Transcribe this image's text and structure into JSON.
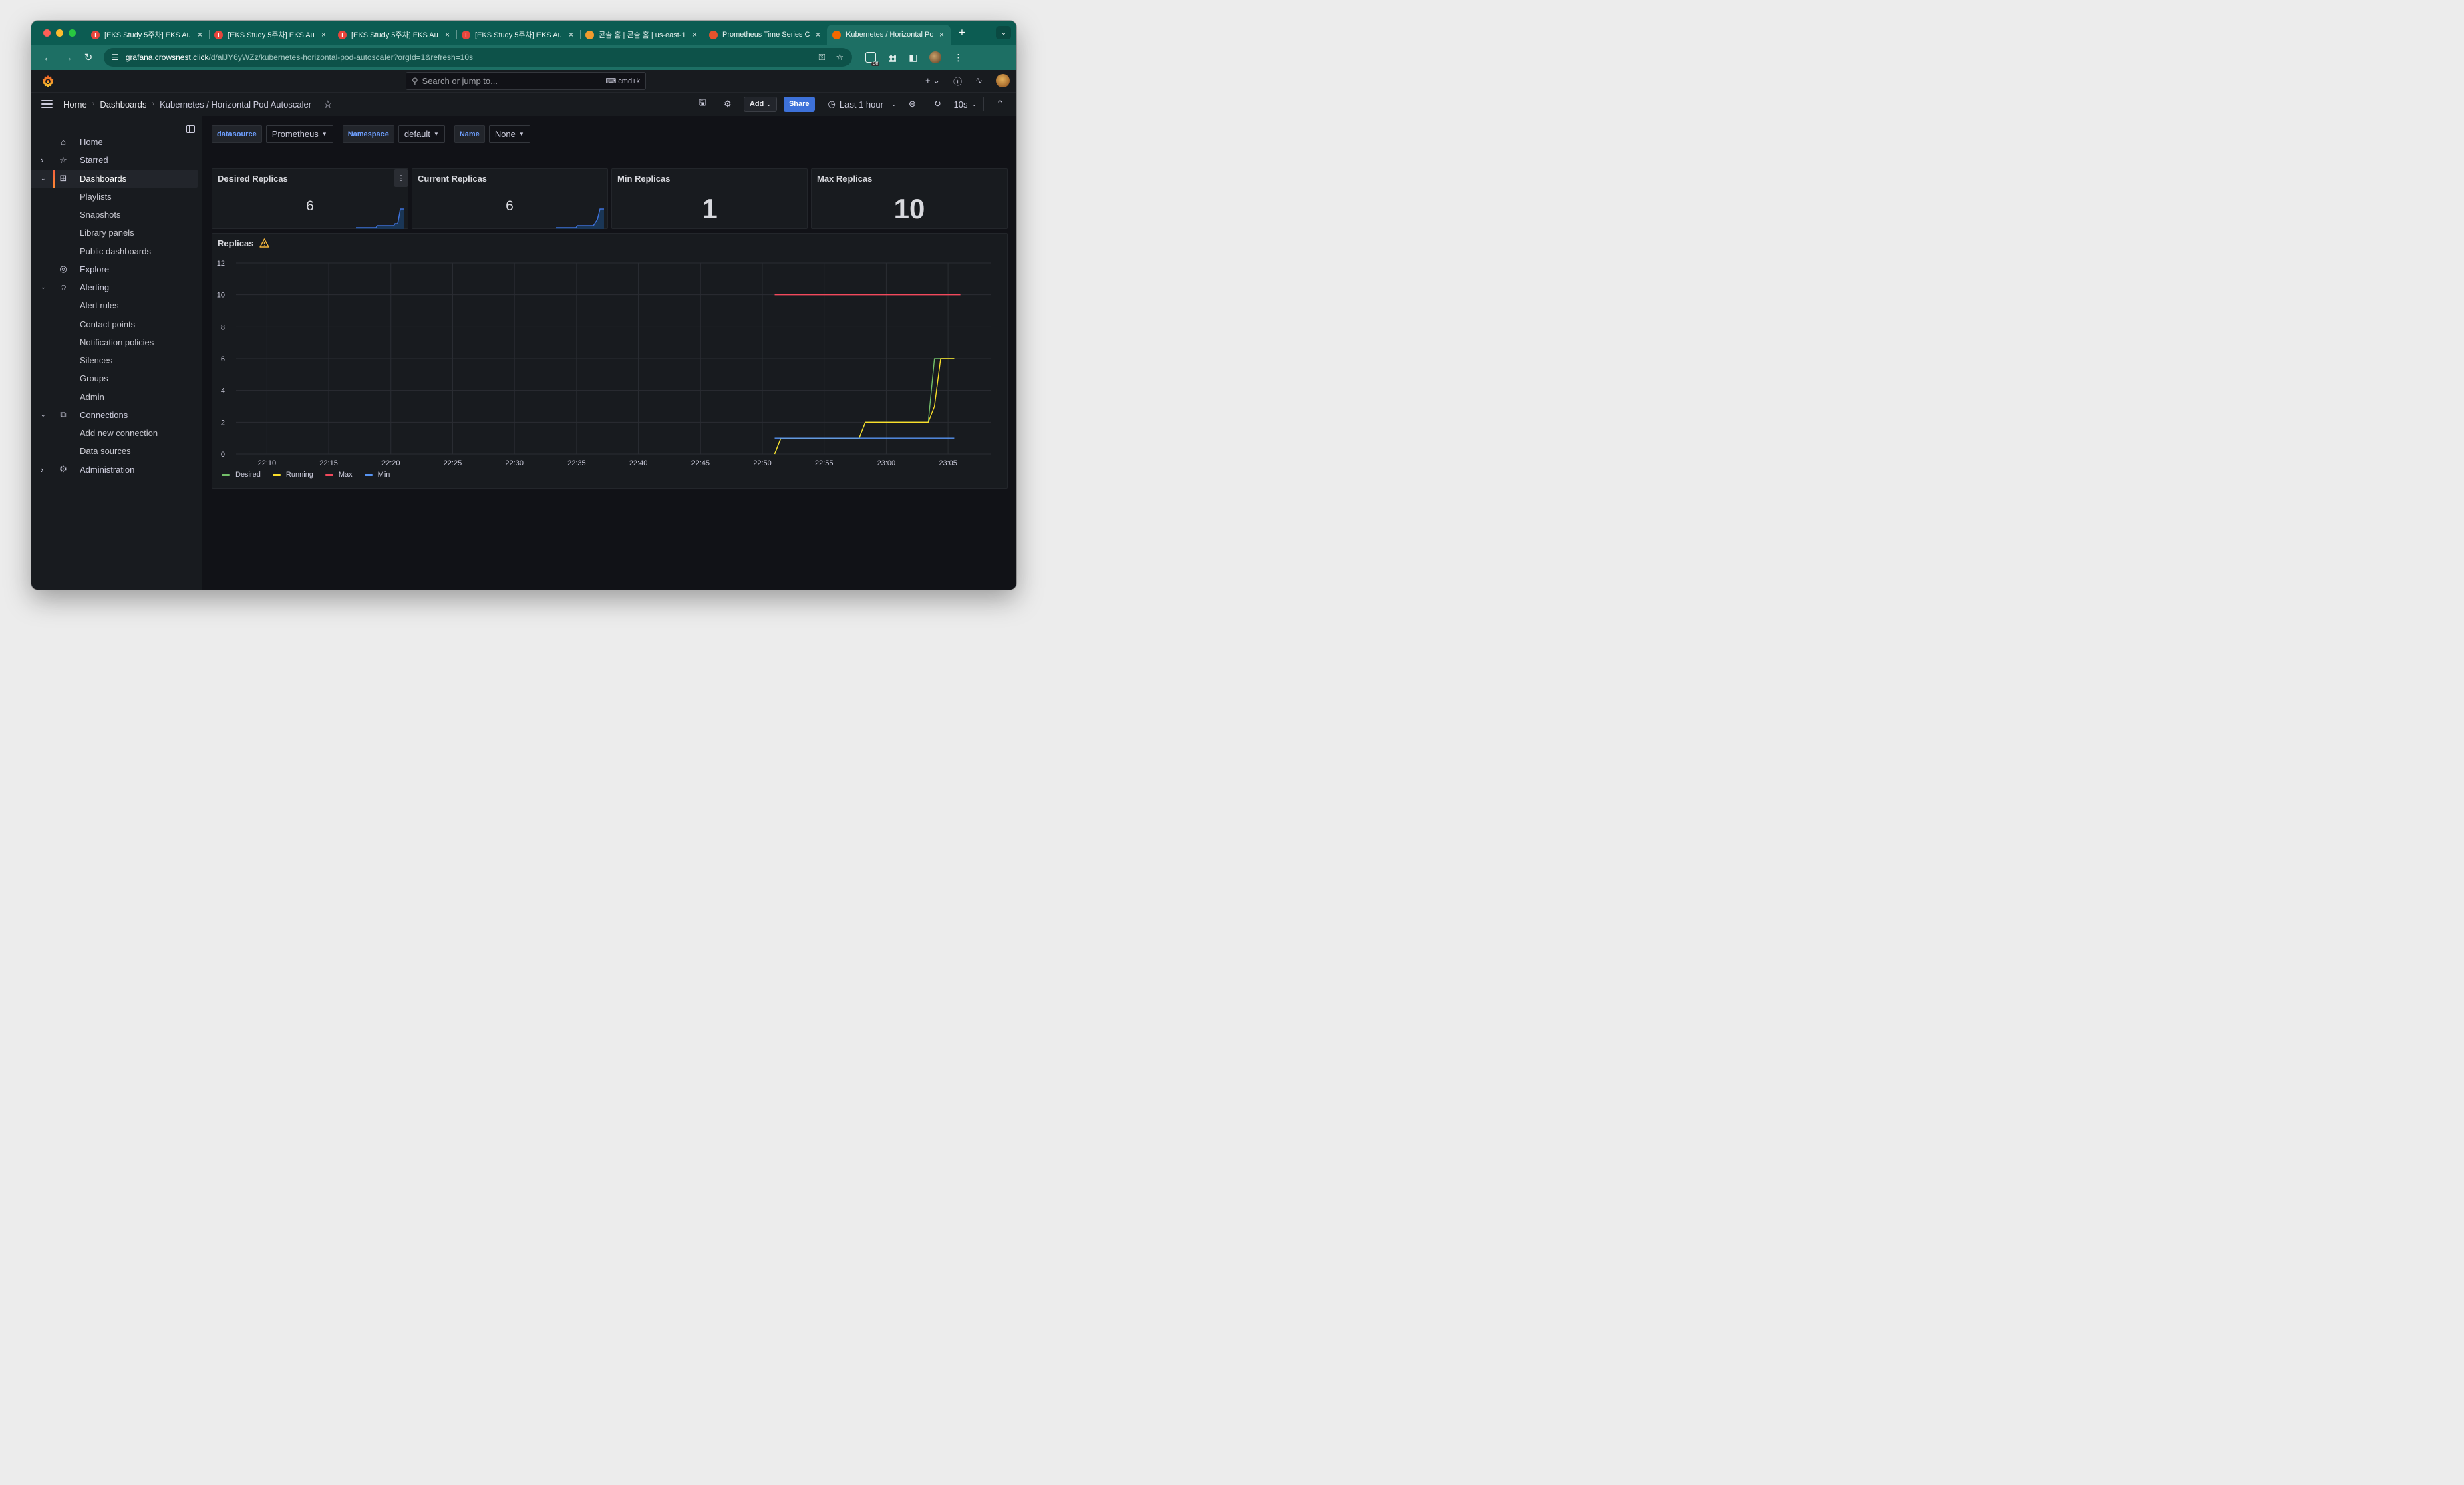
{
  "browser": {
    "tabs": [
      {
        "title": "[EKS Study 5주차] EKS Au",
        "favicon_color": "#e8453c",
        "favicon_glyph": "T"
      },
      {
        "title": "[EKS Study 5주차] EKS Au",
        "favicon_color": "#e8453c",
        "favicon_glyph": "T"
      },
      {
        "title": "[EKS Study 5주차] EKS Au",
        "favicon_color": "#e8453c",
        "favicon_glyph": "T"
      },
      {
        "title": "[EKS Study 5주차] EKS Au",
        "favicon_color": "#e8453c",
        "favicon_glyph": "T"
      },
      {
        "title": "콘솔 홈 | 콘솔 홈 | us-east-1",
        "favicon_color": "#f29b2e",
        "favicon_glyph": ""
      },
      {
        "title": "Prometheus Time Series C",
        "favicon_color": "#e6522c",
        "favicon_glyph": ""
      },
      {
        "title": "Kubernetes / Horizontal Po",
        "favicon_color": "#f46800",
        "favicon_glyph": "",
        "active": true
      }
    ],
    "url_host": "grafana.crowsnest.click",
    "url_path": "/d/alJY6yWZz/kubernetes-horizontal-pod-autoscaler?orgId=1&refresh=10s",
    "ext_badge": "Off"
  },
  "topbar": {
    "search_placeholder": "Search or jump to...",
    "search_shortcut": "cmd+k"
  },
  "breadcrumbs": [
    "Home",
    "Dashboards",
    "Kubernetes / Horizontal Pod Autoscaler"
  ],
  "toolbar": {
    "add_label": "Add",
    "share_label": "Share",
    "time_range": "Last 1 hour",
    "refresh_interval": "10s"
  },
  "sidebar": {
    "items": [
      {
        "label": "Home",
        "icon": "home-icon",
        "level": 0,
        "chevron": ""
      },
      {
        "label": "Starred",
        "icon": "star-icon",
        "level": 0,
        "chevron": "right"
      },
      {
        "label": "Dashboards",
        "icon": "apps-icon",
        "level": 0,
        "chevron": "down",
        "active": true
      },
      {
        "label": "Playlists",
        "level": 1
      },
      {
        "label": "Snapshots",
        "level": 1
      },
      {
        "label": "Library panels",
        "level": 1
      },
      {
        "label": "Public dashboards",
        "level": 1
      },
      {
        "label": "Explore",
        "icon": "compass-icon",
        "level": 0,
        "chevron": ""
      },
      {
        "label": "Alerting",
        "icon": "bell-icon",
        "level": 0,
        "chevron": "down"
      },
      {
        "label": "Alert rules",
        "level": 1
      },
      {
        "label": "Contact points",
        "level": 1
      },
      {
        "label": "Notification policies",
        "level": 1
      },
      {
        "label": "Silences",
        "level": 1
      },
      {
        "label": "Groups",
        "level": 1
      },
      {
        "label": "Admin",
        "level": 1
      },
      {
        "label": "Connections",
        "icon": "link-icon",
        "level": 0,
        "chevron": "down"
      },
      {
        "label": "Add new connection",
        "level": 1
      },
      {
        "label": "Data sources",
        "level": 1
      },
      {
        "label": "Administration",
        "icon": "cog-icon",
        "level": 0,
        "chevron": "right"
      }
    ]
  },
  "variables": [
    {
      "label": "datasource",
      "value": "Prometheus"
    },
    {
      "label": "Namespace",
      "value": "default"
    },
    {
      "label": "Name",
      "value": "None"
    }
  ],
  "stats": [
    {
      "title": "Desired Replicas",
      "value": "6",
      "sparkline": true
    },
    {
      "title": "Current Replicas",
      "value": "6",
      "sparkline": true
    },
    {
      "title": "Min Replicas",
      "value": "1",
      "sparkline": false
    },
    {
      "title": "Max Replicas",
      "value": "10",
      "sparkline": false
    }
  ],
  "chart_data": {
    "type": "line",
    "title": "Replicas",
    "xlabel": "",
    "ylabel": "",
    "x_ticks": [
      "22:10",
      "22:15",
      "22:20",
      "22:25",
      "22:30",
      "22:35",
      "22:40",
      "22:45",
      "22:50",
      "22:55",
      "23:00",
      "23:05"
    ],
    "y_ticks": [
      0,
      2,
      4,
      6,
      8,
      10,
      12
    ],
    "ylim": [
      0,
      12
    ],
    "xlim_minutes_after_2210": [
      -2.5,
      58.5
    ],
    "grid": true,
    "legend_position": "bottom-left",
    "series": [
      {
        "name": "Desired",
        "color": "#73bf69",
        "points": [
          [
            "22:51",
            0
          ],
          [
            "22:51.5",
            1
          ],
          [
            "22:57.8",
            1
          ],
          [
            "22:58.3",
            2
          ],
          [
            "23:03.4",
            2
          ],
          [
            "23:03.9",
            6
          ],
          [
            "23:05.5",
            6
          ]
        ]
      },
      {
        "name": "Running",
        "color": "#fade2a",
        "points": [
          [
            "22:51",
            0
          ],
          [
            "22:51.5",
            1
          ],
          [
            "22:57.8",
            1
          ],
          [
            "22:58.3",
            2
          ],
          [
            "23:03.4",
            2
          ],
          [
            "23:03.9",
            3
          ],
          [
            "23:04.4",
            6
          ],
          [
            "23:05.5",
            6
          ]
        ]
      },
      {
        "name": "Max",
        "color": "#f2495c",
        "points": [
          [
            "22:51",
            10
          ],
          [
            "23:06",
            10
          ]
        ]
      },
      {
        "name": "Min",
        "color": "#5794f2",
        "points": [
          [
            "22:51",
            1
          ],
          [
            "23:05.5",
            1
          ]
        ]
      }
    ]
  }
}
